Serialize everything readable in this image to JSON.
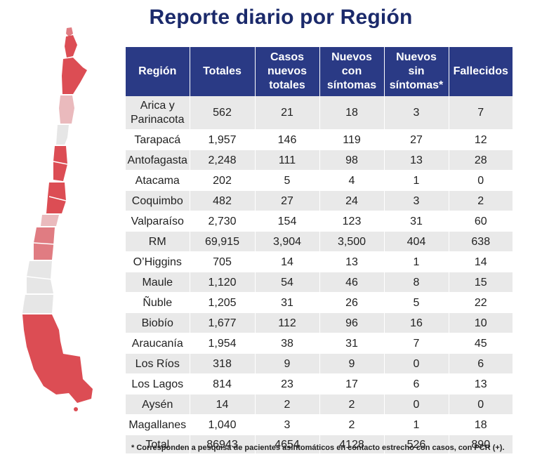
{
  "title": "Reporte diario por Región",
  "headers": {
    "region": "Región",
    "totales": "Totales",
    "casos_1": "Casos",
    "casos_2": "nuevos",
    "casos_3": "totales",
    "con_1": "Nuevos",
    "con_2": "con",
    "con_3": "síntomas",
    "sin_1": "Nuevos",
    "sin_2": "sin",
    "sin_3": "síntomas*",
    "fallecidos": "Fallecidos"
  },
  "rows": [
    {
      "region": "Arica y Parinacota",
      "totales": "562",
      "casos": "21",
      "con": "18",
      "sin": "3",
      "fallecidos": "7"
    },
    {
      "region": "Tarapacá",
      "totales": "1,957",
      "casos": "146",
      "con": "119",
      "sin": "27",
      "fallecidos": "12"
    },
    {
      "region": "Antofagasta",
      "totales": "2,248",
      "casos": "111",
      "con": "98",
      "sin": "13",
      "fallecidos": "28"
    },
    {
      "region": "Atacama",
      "totales": "202",
      "casos": "5",
      "con": "4",
      "sin": "1",
      "fallecidos": "0"
    },
    {
      "region": "Coquimbo",
      "totales": "482",
      "casos": "27",
      "con": "24",
      "sin": "3",
      "fallecidos": "2"
    },
    {
      "region": "Valparaíso",
      "totales": "2,730",
      "casos": "154",
      "con": "123",
      "sin": "31",
      "fallecidos": "60"
    },
    {
      "region": "RM",
      "totales": "69,915",
      "casos": "3,904",
      "con": "3,500",
      "sin": "404",
      "fallecidos": "638"
    },
    {
      "region": "O’Higgins",
      "totales": "705",
      "casos": "14",
      "con": "13",
      "sin": "1",
      "fallecidos": "14"
    },
    {
      "region": "Maule",
      "totales": "1,120",
      "casos": "54",
      "con": "46",
      "sin": "8",
      "fallecidos": "15"
    },
    {
      "region": "Ñuble",
      "totales": "1,205",
      "casos": "31",
      "con": "26",
      "sin": "5",
      "fallecidos": "22"
    },
    {
      "region": "Biobío",
      "totales": "1,677",
      "casos": "112",
      "con": "96",
      "sin": "16",
      "fallecidos": "10"
    },
    {
      "region": "Araucanía",
      "totales": "1,954",
      "casos": "38",
      "con": "31",
      "sin": "7",
      "fallecidos": "45"
    },
    {
      "region": "Los Ríos",
      "totales": "318",
      "casos": "9",
      "con": "9",
      "sin": "0",
      "fallecidos": "6"
    },
    {
      "region": "Los Lagos",
      "totales": "814",
      "casos": "23",
      "con": "17",
      "sin": "6",
      "fallecidos": "13"
    },
    {
      "region": "Aysén",
      "totales": "14",
      "casos": "2",
      "con": "2",
      "sin": "0",
      "fallecidos": "0"
    },
    {
      "region": "Magallanes",
      "totales": "1,040",
      "casos": "3",
      "con": "2",
      "sin": "1",
      "fallecidos": "18"
    }
  ],
  "total": {
    "region": "Total",
    "totales": "86943",
    "casos": "4654",
    "con": "4128",
    "sin": "526",
    "fallecidos": "890"
  },
  "footnote": "* Corresponden a pesquisa de pacientes asintomáticos en contacto estrecho con casos, con PCR (+).",
  "map": {
    "colors": {
      "dark": "#dc4d54",
      "medium": "#e07c82",
      "light": "#eababd",
      "gray": "#e6e6e6"
    }
  }
}
